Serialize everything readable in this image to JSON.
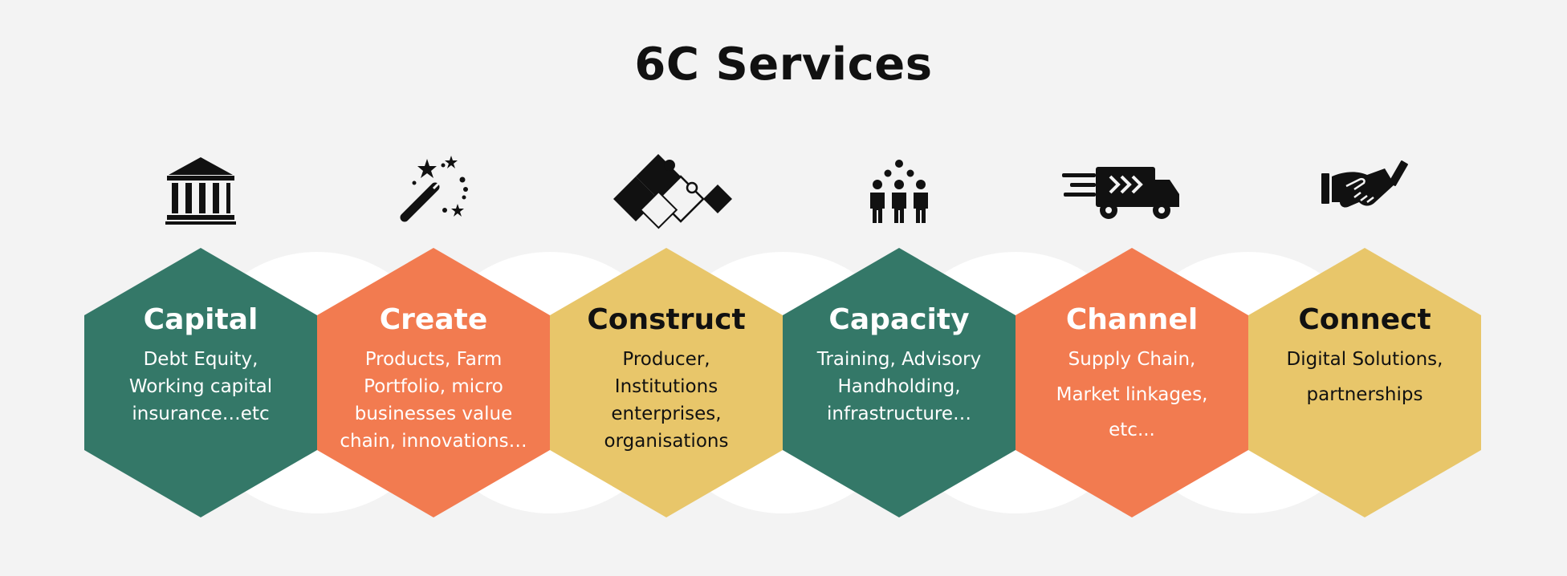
{
  "title": "6C Services",
  "colors": {
    "green": "#347868",
    "orange": "#f27b50",
    "yellow": "#e8c66a",
    "circle": "#ffffff",
    "background": "#f3f3f3"
  },
  "services": [
    {
      "name": "Capital",
      "desc": [
        "Debt Equity,",
        "Working capital",
        "insurance…etc"
      ],
      "color": "green",
      "icon": "bank-icon",
      "title_color": "#ffffff",
      "text_color": "#ffffff"
    },
    {
      "name": "Create",
      "desc": [
        "Products, Farm",
        "Portfolio, micro",
        "businesses value",
        "chain, innovations…"
      ],
      "color": "orange",
      "icon": "magic-wand-icon",
      "title_color": "#ffffff",
      "text_color": "#ffffff"
    },
    {
      "name": "Construct",
      "desc": [
        "Producer,",
        "Institutions",
        "enterprises,",
        "organisations"
      ],
      "color": "yellow",
      "icon": "puzzle-icon",
      "title_color": "#111111",
      "text_color": "#111111"
    },
    {
      "name": "Capacity",
      "desc": [
        "Training, Advisory",
        "Handholding,",
        "infrastructure…"
      ],
      "color": "green",
      "icon": "people-group-icon",
      "title_color": "#ffffff",
      "text_color": "#ffffff"
    },
    {
      "name": "Channel",
      "desc": [
        "Supply Chain,",
        "Market linkages,",
        "etc..."
      ],
      "color": "orange",
      "icon": "delivery-truck-icon",
      "title_color": "#ffffff",
      "text_color": "#ffffff"
    },
    {
      "name": "Connect",
      "desc": [
        "Digital Solutions,",
        "partnerships"
      ],
      "color": "yellow",
      "icon": "handshake-icon",
      "title_color": "#111111",
      "text_color": "#111111"
    }
  ]
}
